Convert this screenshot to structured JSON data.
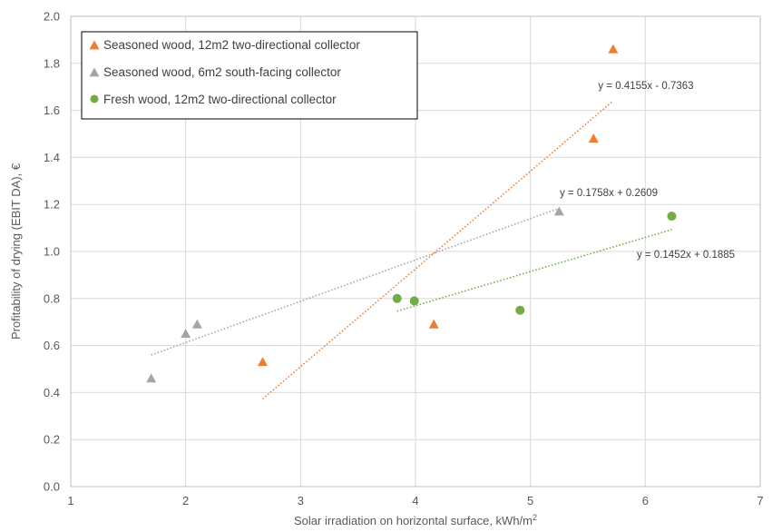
{
  "chart_data": {
    "type": "scatter",
    "xlabel": "Solar irradiation on horizontal surface, kWh/m",
    "xlabel_sup": "2",
    "ylabel": "Profitability of drying (EBIT DA), €",
    "xlim": [
      1,
      7
    ],
    "ylim": [
      0,
      2.0
    ],
    "x_ticks": [
      "1",
      "2",
      "3",
      "4",
      "5",
      "6",
      "7"
    ],
    "y_ticks": [
      "0.0",
      "0.2",
      "0.4",
      "0.6",
      "0.8",
      "1.0",
      "1.2",
      "1.4",
      "1.6",
      "1.8",
      "2.0"
    ],
    "grid": "both",
    "legend_position": "top-left",
    "series": [
      {
        "name": "Seasoned wood, 12m2 two-directional collector",
        "marker": "triangle",
        "color": "#ED7D31",
        "points": [
          [
            2.67,
            0.53
          ],
          [
            4.16,
            0.69
          ],
          [
            5.55,
            1.48
          ],
          [
            5.72,
            1.86
          ]
        ],
        "trendline": {
          "x_range": [
            2.67,
            5.72
          ],
          "slope": 0.4155,
          "intercept": -0.7363,
          "label": "y = 0.4155x - 0.7363"
        }
      },
      {
        "name": "Seasoned wood, 6m2 south-facing collector",
        "marker": "triangle",
        "color": "#A5A5A5",
        "points": [
          [
            1.7,
            0.46
          ],
          [
            2.0,
            0.65
          ],
          [
            2.1,
            0.69
          ],
          [
            5.25,
            1.17
          ]
        ],
        "trendline": {
          "x_range": [
            1.7,
            5.25
          ],
          "slope": 0.1758,
          "intercept": 0.2609,
          "label": "y = 0.1758x + 0.2609"
        }
      },
      {
        "name": "Fresh wood, 12m2 two-directional collector",
        "marker": "circle",
        "color": "#70AD47",
        "points": [
          [
            3.84,
            0.8
          ],
          [
            3.99,
            0.79
          ],
          [
            4.91,
            0.75
          ],
          [
            6.23,
            1.15
          ]
        ],
        "trendline": {
          "x_range": [
            3.84,
            6.23
          ],
          "slope": 0.1452,
          "intercept": 0.1885,
          "label": "y = 0.1452x + 0.1885"
        }
      }
    ]
  }
}
